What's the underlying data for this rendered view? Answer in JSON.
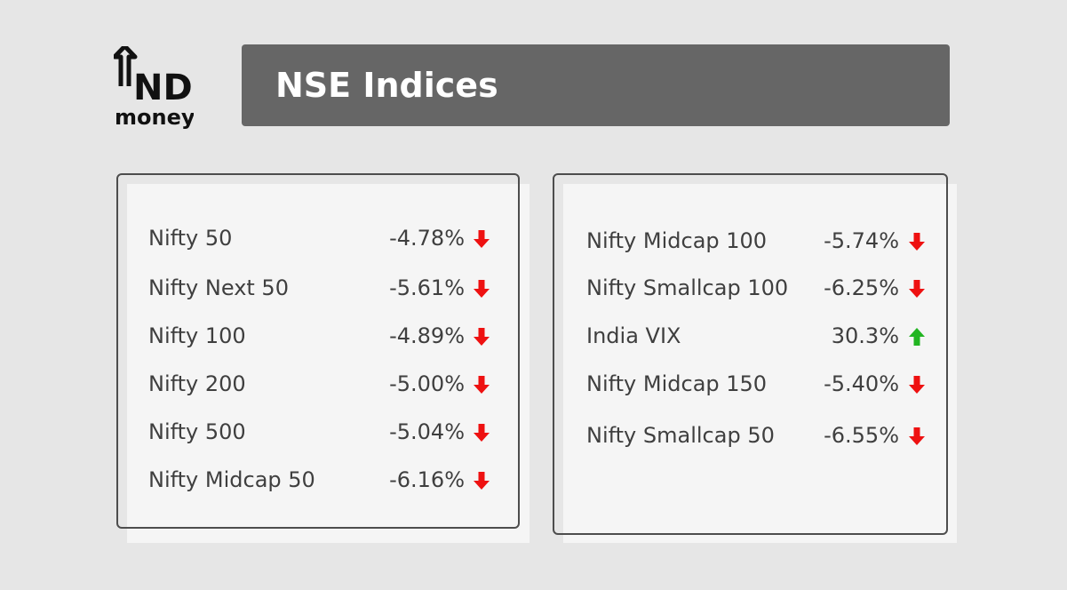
{
  "logo": {
    "brand": "IND",
    "sub": "money"
  },
  "header": {
    "title": "NSE Indices"
  },
  "colors": {
    "down": "#ee1111",
    "up": "#22b522",
    "title_bg": "#666666"
  },
  "left_card": {
    "rows": [
      {
        "name": "Nifty 50",
        "change": "-4.78%",
        "direction": "down"
      },
      {
        "name": "Nifty Next 50",
        "change": "-5.61%",
        "direction": "down"
      },
      {
        "name": "Nifty 100",
        "change": "-4.89%",
        "direction": "down"
      },
      {
        "name": "Nifty 200",
        "change": "-5.00%",
        "direction": "down"
      },
      {
        "name": "Nifty 500",
        "change": "-5.04%",
        "direction": "down"
      },
      {
        "name": "Nifty Midcap 50",
        "change": "-6.16%",
        "direction": "down"
      }
    ]
  },
  "right_card": {
    "rows": [
      {
        "name": "Nifty Midcap 100",
        "change": "-5.74%",
        "direction": "down"
      },
      {
        "name": "Nifty Smallcap 100",
        "change": "-6.25%",
        "direction": "down"
      },
      {
        "name": "India VIX",
        "change": "30.3%",
        "direction": "up"
      },
      {
        "name": "Nifty Midcap 150",
        "change": "-5.40%",
        "direction": "down"
      },
      {
        "name": "Nifty Smallcap 50",
        "change": "-6.55%",
        "direction": "down"
      }
    ]
  }
}
